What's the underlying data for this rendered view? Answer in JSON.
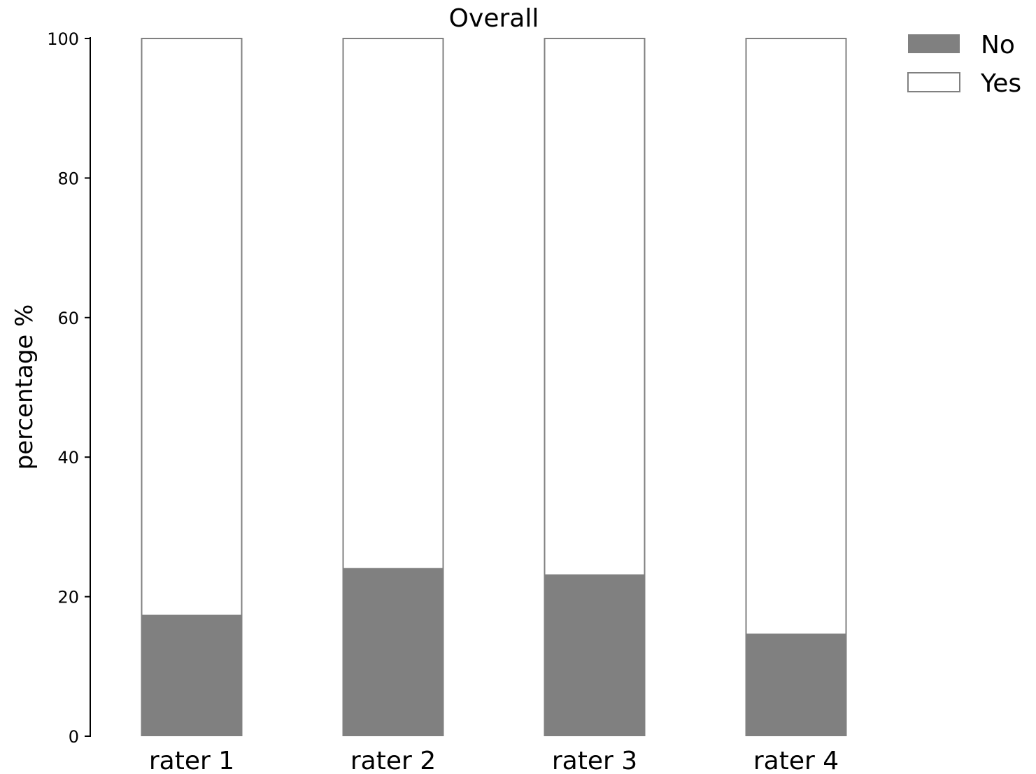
{
  "chart_data": {
    "type": "bar",
    "stacked": true,
    "title": "Overall",
    "xlabel": "",
    "ylabel": "percentage %",
    "ylim": [
      0,
      100
    ],
    "yticks": [
      0,
      20,
      40,
      60,
      80,
      100
    ],
    "categories": [
      "rater 1",
      "rater 2",
      "rater 3",
      "rater 4"
    ],
    "series": [
      {
        "name": "No",
        "values": [
          17.3,
          24.0,
          23.1,
          14.6
        ],
        "color": "#808080"
      },
      {
        "name": "Yes",
        "values": [
          82.7,
          76.0,
          76.9,
          85.4
        ],
        "color": "#ffffff",
        "edge_color": "#808080"
      }
    ],
    "grid": false,
    "legend": "top-right"
  }
}
